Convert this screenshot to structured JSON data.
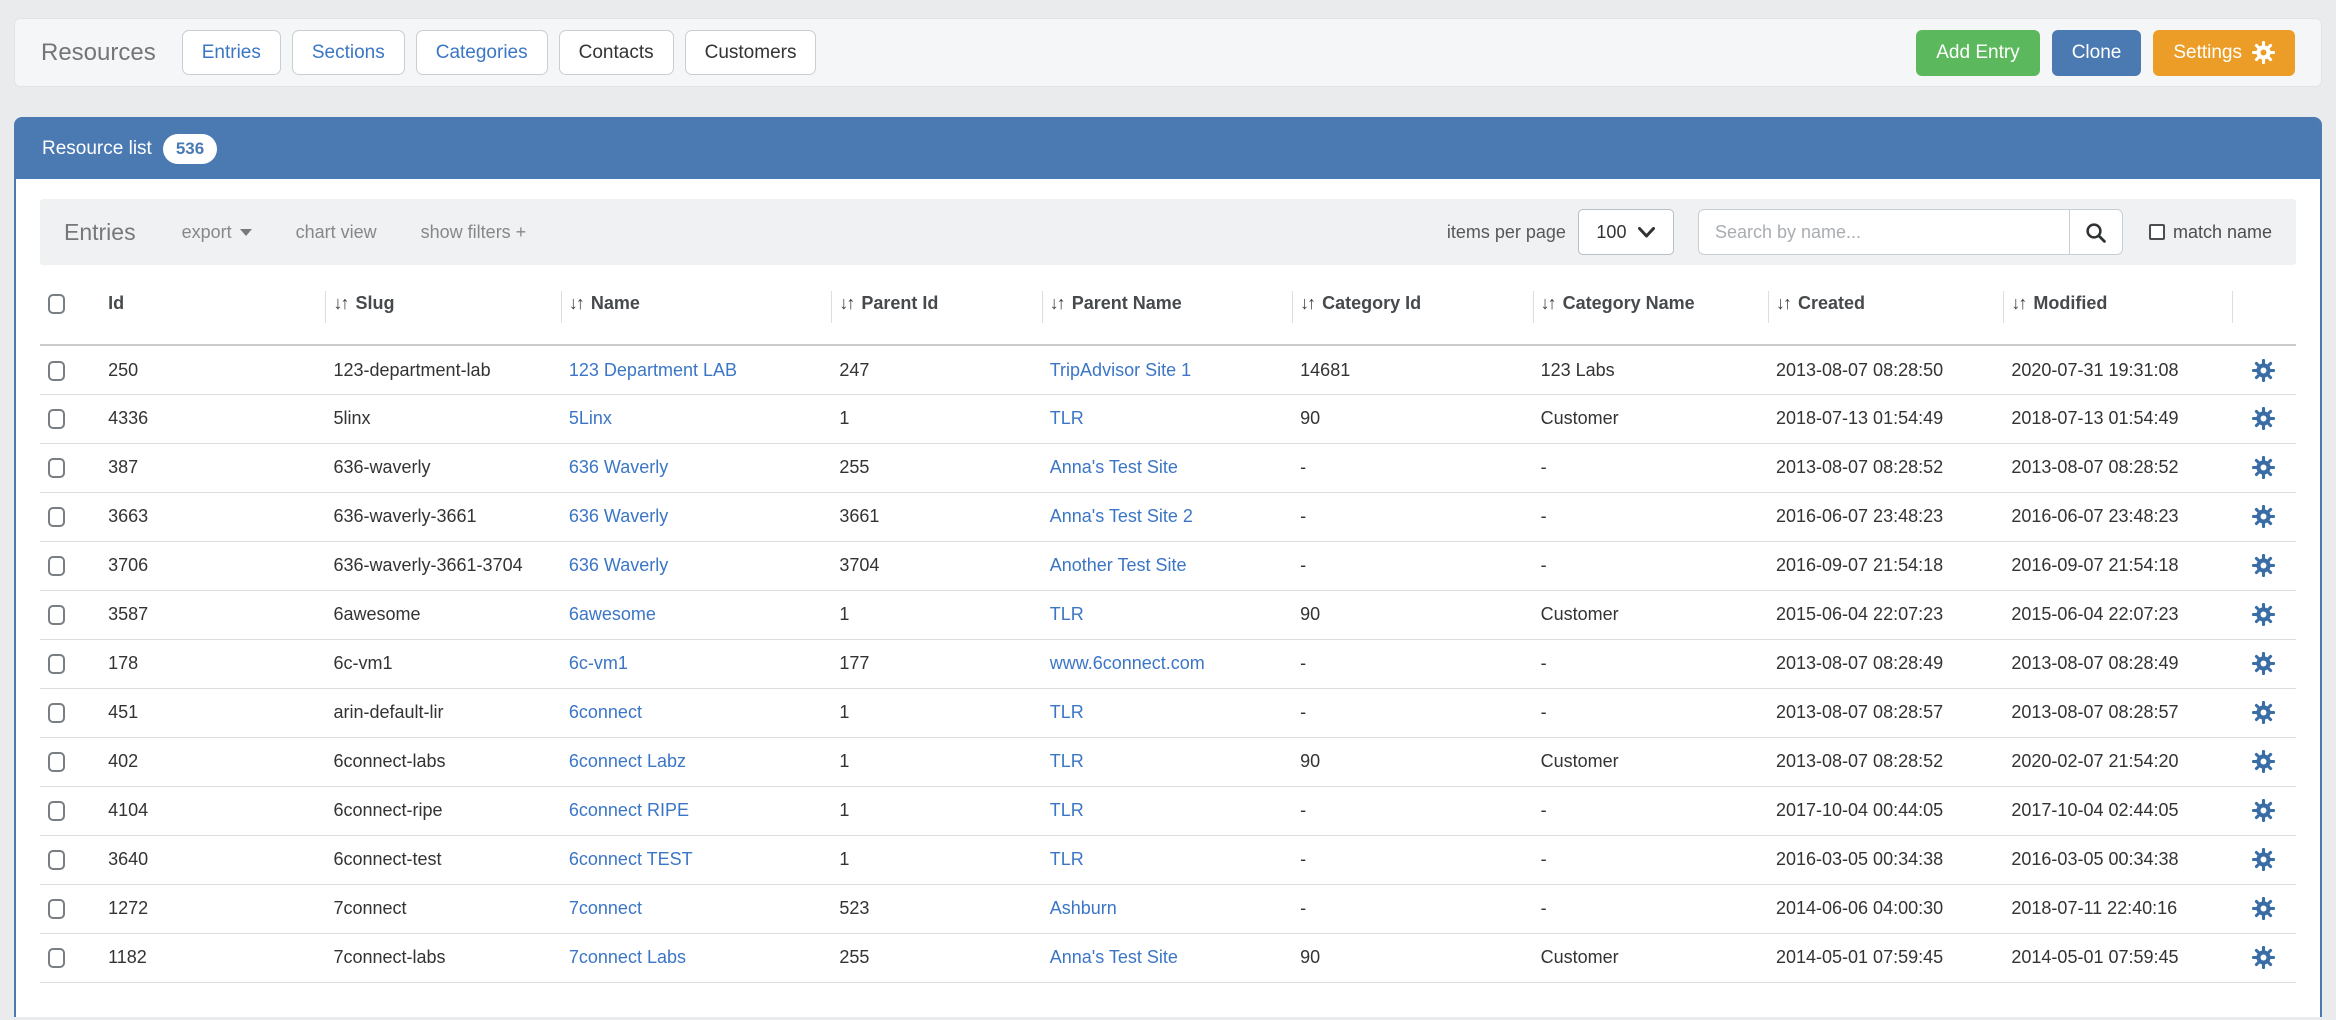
{
  "colors": {
    "accent_blue": "#4b7ab3",
    "link_blue": "#3b76c6",
    "gear_blue": "#3a6da6",
    "button_green": "#5cb85c",
    "button_blue": "#4b7ab3",
    "button_orange": "#ec9d27"
  },
  "header": {
    "title": "Resources",
    "tabs": [
      {
        "label": "Entries",
        "text_color": "#3b76c6"
      },
      {
        "label": "Sections",
        "text_color": "#3b76c6"
      },
      {
        "label": "Categories",
        "text_color": "#3b76c6"
      },
      {
        "label": "Contacts",
        "text_color": "#333333"
      },
      {
        "label": "Customers",
        "text_color": "#333333"
      }
    ],
    "actions": [
      {
        "label": "Add Entry",
        "color": "#5cb85c"
      },
      {
        "label": "Clone",
        "color": "#4b7ab3"
      },
      {
        "label": "Settings",
        "color": "#ec9d27",
        "icon": "gear"
      }
    ]
  },
  "panel": {
    "title": "Resource list",
    "count_badge": "536"
  },
  "toolbar": {
    "heading": "Entries",
    "links": [
      "export",
      "chart view",
      "show filters +"
    ],
    "items_per_page_label": "items per page",
    "items_per_page_value": "100",
    "search_placeholder": "Search by name...",
    "match_name_label": "match name"
  },
  "table": {
    "columns": [
      {
        "label": "Id",
        "sortable": false
      },
      {
        "label": "Slug",
        "sortable": true
      },
      {
        "label": "Name",
        "sortable": true
      },
      {
        "label": "Parent Id",
        "sortable": true
      },
      {
        "label": "Parent Name",
        "sortable": true
      },
      {
        "label": "Category Id",
        "sortable": true
      },
      {
        "label": "Category Name",
        "sortable": true
      },
      {
        "label": "Created",
        "sortable": true
      },
      {
        "label": "Modified",
        "sortable": true
      }
    ],
    "rows": [
      {
        "id": "250",
        "slug": "123-department-lab",
        "name": "123 Department LAB",
        "parent_id": "247",
        "parent_name": "TripAdvisor Site 1",
        "category_id": "14681",
        "category_name": "123 Labs",
        "created": "2013-08-07 08:28:50",
        "modified": "2020-07-31 19:31:08"
      },
      {
        "id": "4336",
        "slug": "5linx",
        "name": "5Linx",
        "parent_id": "1",
        "parent_name": "TLR",
        "category_id": "90",
        "category_name": "Customer",
        "created": "2018-07-13 01:54:49",
        "modified": "2018-07-13 01:54:49"
      },
      {
        "id": "387",
        "slug": "636-waverly",
        "name": "636 Waverly",
        "parent_id": "255",
        "parent_name": "Anna's Test Site",
        "category_id": "-",
        "category_name": "-",
        "created": "2013-08-07 08:28:52",
        "modified": "2013-08-07 08:28:52"
      },
      {
        "id": "3663",
        "slug": "636-waverly-3661",
        "name": "636 Waverly",
        "parent_id": "3661",
        "parent_name": "Anna's Test Site 2",
        "category_id": "-",
        "category_name": "-",
        "created": "2016-06-07 23:48:23",
        "modified": "2016-06-07 23:48:23"
      },
      {
        "id": "3706",
        "slug": "636-waverly-3661-3704",
        "name": "636 Waverly",
        "parent_id": "3704",
        "parent_name": "Another Test Site",
        "category_id": "-",
        "category_name": "-",
        "created": "2016-09-07 21:54:18",
        "modified": "2016-09-07 21:54:18"
      },
      {
        "id": "3587",
        "slug": "6awesome",
        "name": "6awesome",
        "parent_id": "1",
        "parent_name": "TLR",
        "category_id": "90",
        "category_name": "Customer",
        "created": "2015-06-04 22:07:23",
        "modified": "2015-06-04 22:07:23"
      },
      {
        "id": "178",
        "slug": "6c-vm1",
        "name": "6c-vm1",
        "parent_id": "177",
        "parent_name": "www.6connect.com",
        "category_id": "-",
        "category_name": "-",
        "created": "2013-08-07 08:28:49",
        "modified": "2013-08-07 08:28:49"
      },
      {
        "id": "451",
        "slug": "arin-default-lir",
        "name": "6connect",
        "parent_id": "1",
        "parent_name": "TLR",
        "category_id": "-",
        "category_name": "-",
        "created": "2013-08-07 08:28:57",
        "modified": "2013-08-07 08:28:57"
      },
      {
        "id": "402",
        "slug": "6connect-labs",
        "name": "6connect Labz",
        "parent_id": "1",
        "parent_name": "TLR",
        "category_id": "90",
        "category_name": "Customer",
        "created": "2013-08-07 08:28:52",
        "modified": "2020-02-07 21:54:20"
      },
      {
        "id": "4104",
        "slug": "6connect-ripe",
        "name": "6connect RIPE",
        "parent_id": "1",
        "parent_name": "TLR",
        "category_id": "-",
        "category_name": "-",
        "created": "2017-10-04 00:44:05",
        "modified": "2017-10-04 02:44:05"
      },
      {
        "id": "3640",
        "slug": "6connect-test",
        "name": "6connect TEST",
        "parent_id": "1",
        "parent_name": "TLR",
        "category_id": "-",
        "category_name": "-",
        "created": "2016-03-05 00:34:38",
        "modified": "2016-03-05 00:34:38"
      },
      {
        "id": "1272",
        "slug": "7connect",
        "name": "7connect",
        "parent_id": "523",
        "parent_name": "Ashburn",
        "category_id": "-",
        "category_name": "-",
        "created": "2014-06-06 04:00:30",
        "modified": "2018-07-11 22:40:16"
      },
      {
        "id": "1182",
        "slug": "7connect-labs",
        "name": "7connect Labs",
        "parent_id": "255",
        "parent_name": "Anna's Test Site",
        "category_id": "90",
        "category_name": "Customer",
        "created": "2014-05-01 07:59:45",
        "modified": "2014-05-01 07:59:45"
      }
    ]
  }
}
